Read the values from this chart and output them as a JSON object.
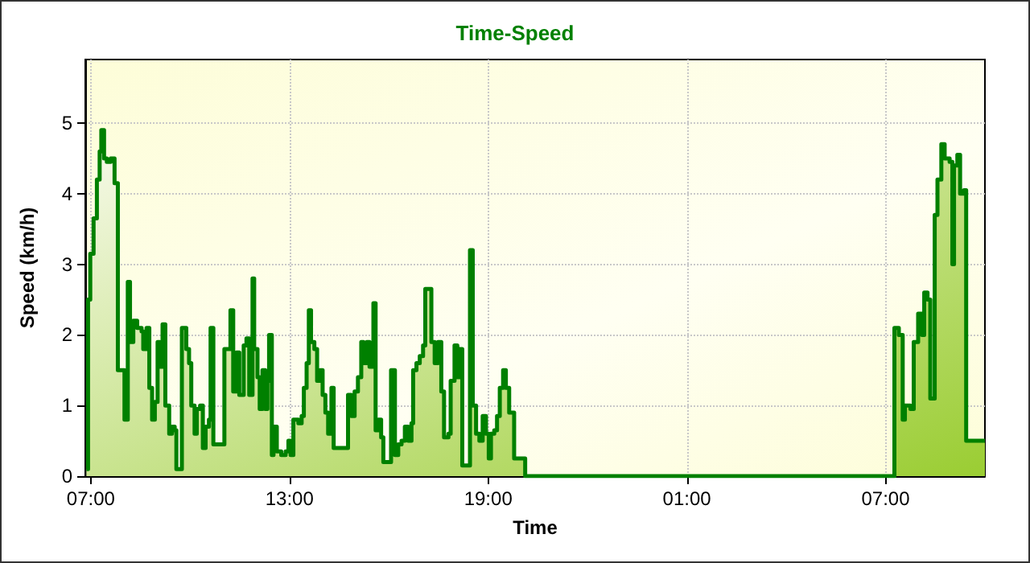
{
  "chart_data": {
    "type": "step",
    "title": "Time-Speed",
    "xlabel": "Time",
    "ylabel": "Speed (km/h)",
    "x": [
      "--01-01T06:52",
      "--01-01T06:55",
      "--01-01T06:59",
      "--01-01T07:05",
      "--01-01T07:11",
      "--01-01T07:16",
      "--01-01T07:19",
      "--01-01T07:24",
      "--01-01T07:29",
      "--01-01T07:36",
      "--01-01T07:43",
      "--01-01T07:49",
      "--01-01T08:01",
      "--01-01T08:07",
      "--01-01T08:11",
      "--01-01T08:17",
      "--01-01T08:24",
      "--01-01T08:32",
      "--01-01T08:35",
      "--01-01T08:41",
      "--01-01T08:46",
      "--01-01T08:51",
      "--01-01T08:56",
      "--01-01T09:01",
      "--01-01T09:05",
      "--01-01T09:10",
      "--01-01T09:15",
      "--01-01T09:22",
      "--01-01T09:27",
      "--01-01T09:32",
      "--01-01T09:35",
      "--01-01T09:45",
      "--01-01T09:53",
      "--01-01T09:58",
      "--01-01T10:02",
      "--01-01T10:08",
      "--01-01T10:12",
      "--01-01T10:18",
      "--01-01T10:23",
      "--01-01T10:28",
      "--01-01T10:34",
      "--01-01T10:37",
      "--01-01T10:42",
      "--01-01T11:02",
      "--01-01T11:13",
      "--01-01T11:18",
      "--01-01T11:24",
      "--01-01T11:29",
      "--01-01T11:37",
      "--01-01T11:42",
      "--01-01T11:47",
      "--01-01T11:53",
      "--01-01T11:56",
      "--01-01T12:02",
      "--01-01T12:06",
      "--01-01T12:11",
      "--01-01T12:16",
      "--01-01T12:20",
      "--01-01T12:23",
      "--01-01T12:28",
      "--01-01T12:31",
      "--01-01T12:37",
      "--01-01T12:45",
      "--01-01T12:53",
      "--01-01T12:58",
      "--01-01T13:02",
      "--01-01T13:07",
      "--01-01T13:16",
      "--01-01T13:22",
      "--01-01T13:26",
      "--01-01T13:31",
      "--01-01T13:35",
      "--01-01T13:39",
      "--01-01T13:45",
      "--01-01T13:50",
      "--01-01T13:55",
      "--01-01T14:00",
      "--01-01T14:05",
      "--01-01T14:10",
      "--01-01T14:16",
      "--01-01T14:20",
      "--01-01T14:46",
      "--01-01T14:52",
      "--01-01T14:58",
      "--01-01T15:04",
      "--01-01T15:10",
      "--01-01T15:14",
      "--01-01T15:20",
      "--01-01T15:25",
      "--01-01T15:32",
      "--01-01T15:36",
      "--01-01T15:41",
      "--01-01T15:46",
      "--01-01T15:50",
      "--01-01T16:04",
      "--01-01T16:11",
      "--01-01T16:17",
      "--01-01T16:23",
      "--01-01T16:29",
      "--01-01T16:35",
      "--01-01T16:41",
      "--01-01T16:44",
      "--01-01T16:50",
      "--01-01T16:56",
      "--01-01T17:02",
      "--01-01T17:06",
      "--01-01T17:17",
      "--01-01T17:23",
      "--01-01T17:29",
      "--01-01T17:35",
      "--01-01T17:40",
      "--01-01T17:48",
      "--01-01T17:52",
      "--01-01T17:59",
      "--01-01T18:04",
      "--01-01T18:08",
      "--01-01T18:13",
      "--01-01T18:27",
      "--01-01T18:32",
      "--01-01T18:38",
      "--01-01T18:44",
      "--01-01T18:50",
      "--01-01T18:56",
      "--01-01T19:01",
      "--01-01T19:05",
      "--01-01T19:11",
      "--01-01T19:16",
      "--01-01T19:21",
      "--01-01T19:27",
      "--01-01T19:32",
      "--01-01T19:38",
      "--01-01T19:47",
      "--01-01T20:07",
      "--01-02T07:09",
      "--01-02T07:16",
      "--01-02T07:24",
      "--01-02T07:31",
      "--01-02T07:35",
      "--01-02T07:45",
      "--01-02T07:51",
      "--01-02T07:59",
      "--01-02T08:06",
      "--01-02T08:10",
      "--01-02T08:16",
      "--01-02T08:21",
      "--01-02T08:29",
      "--01-02T08:34",
      "--01-02T08:41",
      "--01-02T08:47",
      "--01-02T08:56",
      "--01-02T09:01",
      "--01-02T09:04",
      "--01-02T09:10",
      "--01-02T09:15",
      "--01-02T09:22",
      "--01-02T09:26",
      "--01-02T10:00"
    ],
    "series": [
      {
        "color": "#008000",
        "values": [
          0.1,
          2.5,
          3.15,
          3.65,
          4.2,
          4.6,
          4.9,
          4.5,
          4.45,
          4.5,
          4.15,
          1.5,
          0.8,
          2.75,
          1.9,
          2.2,
          2.1,
          2.05,
          1.8,
          2.1,
          1.25,
          0.8,
          1.05,
          1.9,
          1.55,
          2.15,
          1.0,
          0.6,
          0.7,
          0.65,
          0.1,
          2.1,
          1.8,
          1.6,
          1.0,
          0.6,
          0.95,
          1.0,
          0.4,
          0.7,
          0.8,
          2.1,
          0.45,
          1.8,
          2.35,
          1.2,
          1.75,
          1.15,
          1.85,
          1.95,
          1.15,
          2.8,
          1.8,
          1.4,
          0.95,
          1.5,
          0.95,
          1.35,
          2.0,
          0.3,
          0.7,
          0.35,
          0.3,
          0.35,
          0.5,
          0.3,
          0.8,
          0.75,
          0.85,
          1.25,
          1.6,
          2.35,
          1.9,
          1.8,
          1.35,
          1.5,
          1.15,
          0.9,
          0.6,
          1.25,
          0.4,
          1.15,
          0.85,
          1.2,
          1.4,
          1.9,
          1.6,
          1.9,
          1.55,
          2.45,
          0.65,
          0.8,
          0.55,
          0.2,
          1.5,
          0.3,
          0.45,
          0.5,
          0.7,
          0.5,
          0.75,
          1.5,
          1.6,
          1.7,
          1.85,
          2.65,
          1.9,
          1.6,
          1.9,
          1.2,
          0.55,
          0.6,
          1.35,
          1.85,
          1.4,
          1.8,
          0.15,
          3.2,
          1.0,
          0.6,
          0.5,
          0.85,
          0.6,
          0.25,
          0.6,
          0.65,
          0.85,
          1.25,
          1.5,
          1.25,
          0.9,
          0.25,
          0,
          0,
          2.1,
          2.0,
          0.8,
          1.0,
          0.95,
          1.9,
          2.3,
          2.0,
          2.6,
          2.5,
          1.1,
          3.7,
          4.2,
          4.7,
          4.5,
          4.45,
          3.0,
          4.4,
          4.55,
          4.0,
          4.05,
          0.5,
          0.5
        ]
      }
    ],
    "xlim": [
      "--01-01T06:50",
      "--01-02T10:00"
    ],
    "xticks": [
      {
        "value": "--01-01T07:00",
        "label": "07:00"
      },
      {
        "value": "--01-01T13:00",
        "label": "13:00"
      },
      {
        "value": "--01-01T19:00",
        "label": "19:00"
      },
      {
        "value": "--01-02T01:00",
        "label": "01:00"
      },
      {
        "value": "--01-02T07:00",
        "label": "07:00"
      }
    ],
    "ylim": [
      0,
      5.9
    ],
    "yticks": [
      0,
      1,
      2,
      3,
      4,
      5
    ],
    "grid": true,
    "marker": "none",
    "line_style": "solid"
  }
}
